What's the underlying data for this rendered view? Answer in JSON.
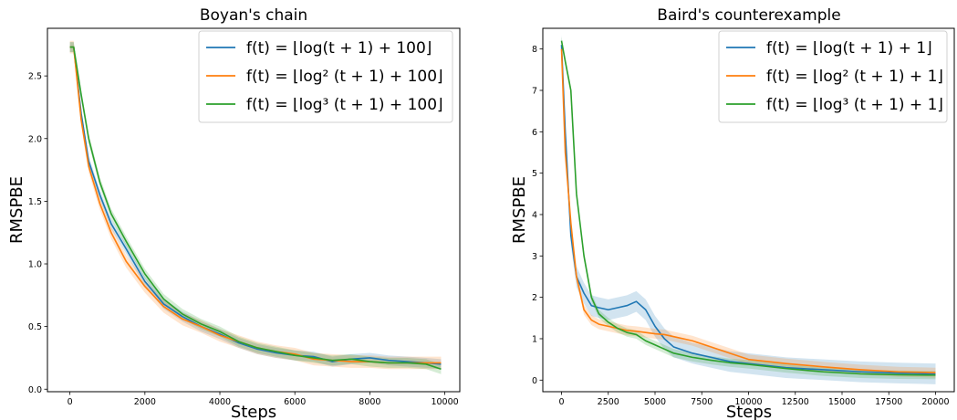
{
  "chart_data": [
    {
      "type": "line",
      "title": "Boyan's chain",
      "xlabel": "Steps",
      "ylabel": "RMSPBE",
      "xlim": [
        -600,
        10400
      ],
      "ylim": [
        -0.02,
        2.88
      ],
      "xticks": [
        0,
        2000,
        4000,
        6000,
        8000,
        10000
      ],
      "yticks": [
        0.0,
        0.5,
        1.0,
        1.5,
        2.0,
        2.5
      ],
      "xtick_labels": [
        "0",
        "2000",
        "4000",
        "6000",
        "8000",
        "10000"
      ],
      "ytick_labels": [
        "0.0",
        "0.5",
        "1.0",
        "1.5",
        "2.0",
        "2.5"
      ],
      "grid": false,
      "legend_position": "top-right",
      "series": [
        {
          "name": "f(t) = ⌊log(t + 1) + 100⌋",
          "color": "#1f77b4",
          "x": [
            0,
            100,
            300,
            500,
            800,
            1100,
            1500,
            2000,
            2500,
            3000,
            3500,
            4000,
            4500,
            5000,
            5500,
            6000,
            6500,
            7000,
            7500,
            8000,
            8500,
            9000,
            9500,
            9900
          ],
          "y": [
            2.73,
            2.73,
            2.2,
            1.82,
            1.55,
            1.32,
            1.12,
            0.86,
            0.68,
            0.58,
            0.5,
            0.44,
            0.37,
            0.32,
            0.29,
            0.27,
            0.26,
            0.22,
            0.24,
            0.25,
            0.23,
            0.22,
            0.21,
            0.2
          ],
          "band": 0.04
        },
        {
          "name": "f(t) = ⌊log² (t + 1) + 100⌋",
          "color": "#ff7f0e",
          "x": [
            0,
            100,
            300,
            500,
            800,
            1100,
            1500,
            2000,
            2500,
            3000,
            3500,
            4000,
            4500,
            5000,
            5500,
            6000,
            6500,
            7000,
            7500,
            8000,
            8500,
            9000,
            9500,
            9900
          ],
          "y": [
            2.73,
            2.73,
            2.15,
            1.78,
            1.48,
            1.25,
            1.02,
            0.82,
            0.66,
            0.56,
            0.5,
            0.43,
            0.38,
            0.33,
            0.3,
            0.28,
            0.24,
            0.23,
            0.22,
            0.22,
            0.21,
            0.21,
            0.21,
            0.21
          ],
          "band": 0.05
        },
        {
          "name": "f(t) = ⌊log³ (t + 1) + 100⌋",
          "color": "#2ca02c",
          "x": [
            0,
            100,
            300,
            500,
            800,
            1100,
            1500,
            2000,
            2500,
            3000,
            3500,
            4000,
            4500,
            5000,
            5500,
            6000,
            6500,
            7000,
            7500,
            8000,
            8500,
            9000,
            9500,
            9900
          ],
          "y": [
            2.73,
            2.73,
            2.35,
            2.0,
            1.65,
            1.4,
            1.18,
            0.92,
            0.72,
            0.6,
            0.52,
            0.46,
            0.38,
            0.33,
            0.3,
            0.27,
            0.25,
            0.23,
            0.24,
            0.22,
            0.21,
            0.21,
            0.2,
            0.16
          ],
          "band": 0.04
        }
      ]
    },
    {
      "type": "line",
      "title": "Baird's counterexample",
      "xlabel": "Steps",
      "ylabel": "RMSPBE",
      "xlim": [
        -1000,
        21000
      ],
      "ylim": [
        -0.28,
        8.5
      ],
      "xticks": [
        0,
        2500,
        5000,
        7500,
        10000,
        12500,
        15000,
        17500,
        20000
      ],
      "yticks": [
        0,
        1,
        2,
        3,
        4,
        5,
        6,
        7,
        8
      ],
      "xtick_labels": [
        "0",
        "2500",
        "5000",
        "7500",
        "10000",
        "12500",
        "15000",
        "17500",
        "20000"
      ],
      "ytick_labels": [
        "0",
        "1",
        "2",
        "3",
        "4",
        "5",
        "6",
        "7",
        "8"
      ],
      "grid": false,
      "legend_position": "top-right",
      "series": [
        {
          "name": "f(t) = ⌊log(t + 1) + 1⌋",
          "color": "#1f77b4",
          "x": [
            0,
            200,
            500,
            800,
            1200,
            1600,
            2000,
            2500,
            3000,
            3500,
            4000,
            4500,
            5000,
            5500,
            6000,
            7000,
            8000,
            9000,
            10000,
            12000,
            14000,
            16000,
            18000,
            20000
          ],
          "y": [
            8.1,
            6.0,
            3.5,
            2.5,
            2.1,
            1.8,
            1.75,
            1.7,
            1.75,
            1.8,
            1.9,
            1.7,
            1.3,
            1.0,
            0.8,
            0.65,
            0.55,
            0.45,
            0.4,
            0.3,
            0.25,
            0.2,
            0.17,
            0.15
          ],
          "band": 0.25
        },
        {
          "name": "f(t) = ⌊log² (t + 1) + 1⌋",
          "color": "#ff7f0e",
          "x": [
            0,
            200,
            500,
            800,
            1200,
            1600,
            2000,
            2500,
            3000,
            3500,
            4000,
            4500,
            5000,
            5500,
            6000,
            7000,
            8000,
            9000,
            10000,
            12000,
            14000,
            16000,
            18000,
            20000
          ],
          "y": [
            8.0,
            5.5,
            3.8,
            2.5,
            1.7,
            1.45,
            1.35,
            1.3,
            1.25,
            1.2,
            1.18,
            1.15,
            1.12,
            1.1,
            1.05,
            0.95,
            0.8,
            0.65,
            0.5,
            0.4,
            0.32,
            0.25,
            0.2,
            0.18
          ],
          "band": 0.12
        },
        {
          "name": "f(t) = ⌊log³ (t + 1) + 1⌋",
          "color": "#2ca02c",
          "x": [
            0,
            200,
            500,
            800,
            1200,
            1600,
            2000,
            2500,
            3000,
            3500,
            4000,
            4500,
            5000,
            5500,
            6000,
            7000,
            8000,
            9000,
            10000,
            12000,
            14000,
            16000,
            18000,
            20000
          ],
          "y": [
            8.2,
            7.7,
            7.0,
            4.5,
            3.0,
            2.0,
            1.6,
            1.4,
            1.25,
            1.15,
            1.1,
            0.95,
            0.85,
            0.75,
            0.65,
            0.55,
            0.48,
            0.42,
            0.38,
            0.28,
            0.2,
            0.15,
            0.13,
            0.12
          ],
          "band": 0.1
        }
      ]
    }
  ]
}
